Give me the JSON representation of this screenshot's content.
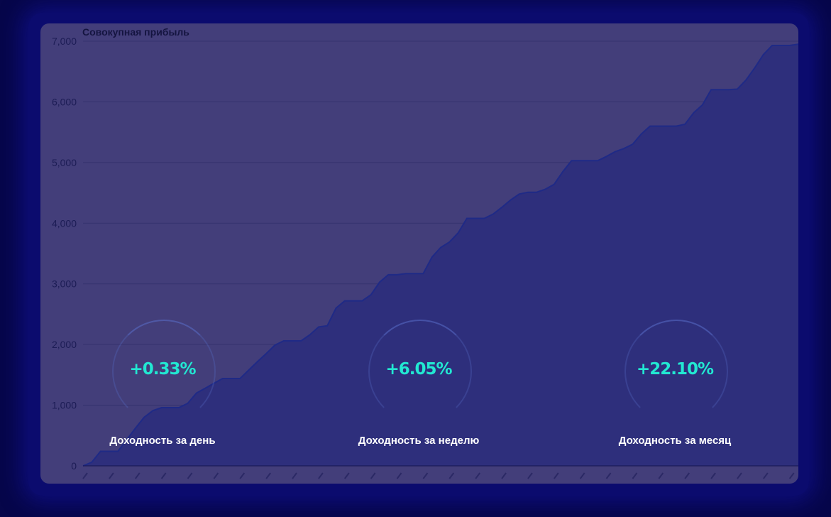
{
  "chart_data": {
    "type": "area",
    "title": "Совокупная прибыль",
    "xlabel": "",
    "ylabel": "",
    "ylim": [
      0,
      7000
    ],
    "yticks": [
      0,
      1000,
      2000,
      3000,
      4000,
      5000,
      6000,
      7000
    ],
    "ytick_labels": [
      "0",
      "1,000",
      "2,000",
      "3,000",
      "4,000",
      "5,000",
      "6,000",
      "7,000"
    ],
    "grid": true,
    "values": [
      0,
      60,
      240,
      240,
      240,
      430,
      620,
      800,
      910,
      960,
      960,
      960,
      1030,
      1200,
      1280,
      1360,
      1440,
      1440,
      1440,
      1580,
      1720,
      1850,
      1990,
      2060,
      2060,
      2060,
      2160,
      2290,
      2310,
      2600,
      2720,
      2720,
      2720,
      2820,
      3030,
      3150,
      3150,
      3170,
      3170,
      3170,
      3440,
      3600,
      3690,
      3840,
      4080,
      4080,
      4080,
      4150,
      4260,
      4380,
      4480,
      4510,
      4510,
      4560,
      4640,
      4850,
      5030,
      5030,
      5030,
      5030,
      5100,
      5180,
      5230,
      5300,
      5470,
      5600,
      5600,
      5600,
      5600,
      5630,
      5820,
      5950,
      6200,
      6200,
      6200,
      6210,
      6360,
      6560,
      6780,
      6930,
      6930,
      6930,
      6950
    ],
    "colors": {
      "line": "#1f2a86",
      "fill": "#2e2f7c",
      "background": "#433e7a"
    }
  },
  "stats": [
    {
      "value": "+0.33%",
      "label": "Доходность за день"
    },
    {
      "value": "+6.05%",
      "label": "Доходность за неделю"
    },
    {
      "value": "+22.10%",
      "label": "Доходность за месяц"
    }
  ],
  "colors": {
    "page": "#06064a",
    "stat_value": "#22e8d2"
  }
}
